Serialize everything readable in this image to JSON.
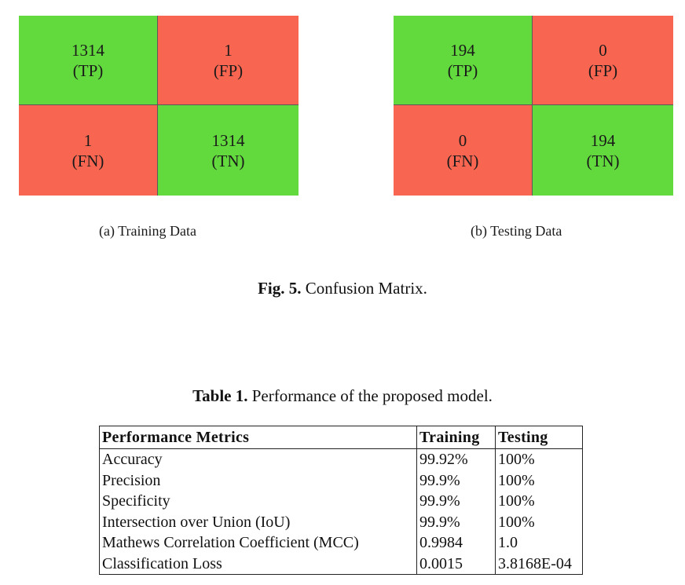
{
  "figure": {
    "training": {
      "tp_value": "1314",
      "tp_label": "(TP)",
      "fp_value": "1",
      "fp_label": "(FP)",
      "fn_value": "1",
      "fn_label": "(FN)",
      "tn_value": "1314",
      "tn_label": "(TN)",
      "caption": "(a) Training Data"
    },
    "testing": {
      "tp_value": "194",
      "tp_label": "(TP)",
      "fp_value": "0",
      "fp_label": "(FP)",
      "fn_value": "0",
      "fn_label": "(FN)",
      "tn_value": "194",
      "tn_label": "(TN)",
      "caption": "(b) Testing Data"
    },
    "caption_prefix": "Fig. 5.",
    "caption_text": " Confusion Matrix.",
    "colors": {
      "correct": "#62d93d",
      "incorrect": "#f86651"
    }
  },
  "table": {
    "caption_prefix": "Table 1.",
    "caption_text": " Performance of the proposed model.",
    "headers": [
      "Performance Metrics",
      "Training",
      "Testing"
    ],
    "rows": [
      [
        "Accuracy",
        "99.92%",
        "100%"
      ],
      [
        "Precision",
        "99.9%",
        "100%"
      ],
      [
        "Specificity",
        "99.9%",
        "100%"
      ],
      [
        "Intersection over Union (IoU)",
        "99.9%",
        "100%"
      ],
      [
        "Mathews Correlation Coefficient (MCC)",
        "0.9984",
        "1.0"
      ],
      [
        "Classification Loss",
        "0.0015",
        "3.8168E-04"
      ]
    ]
  }
}
